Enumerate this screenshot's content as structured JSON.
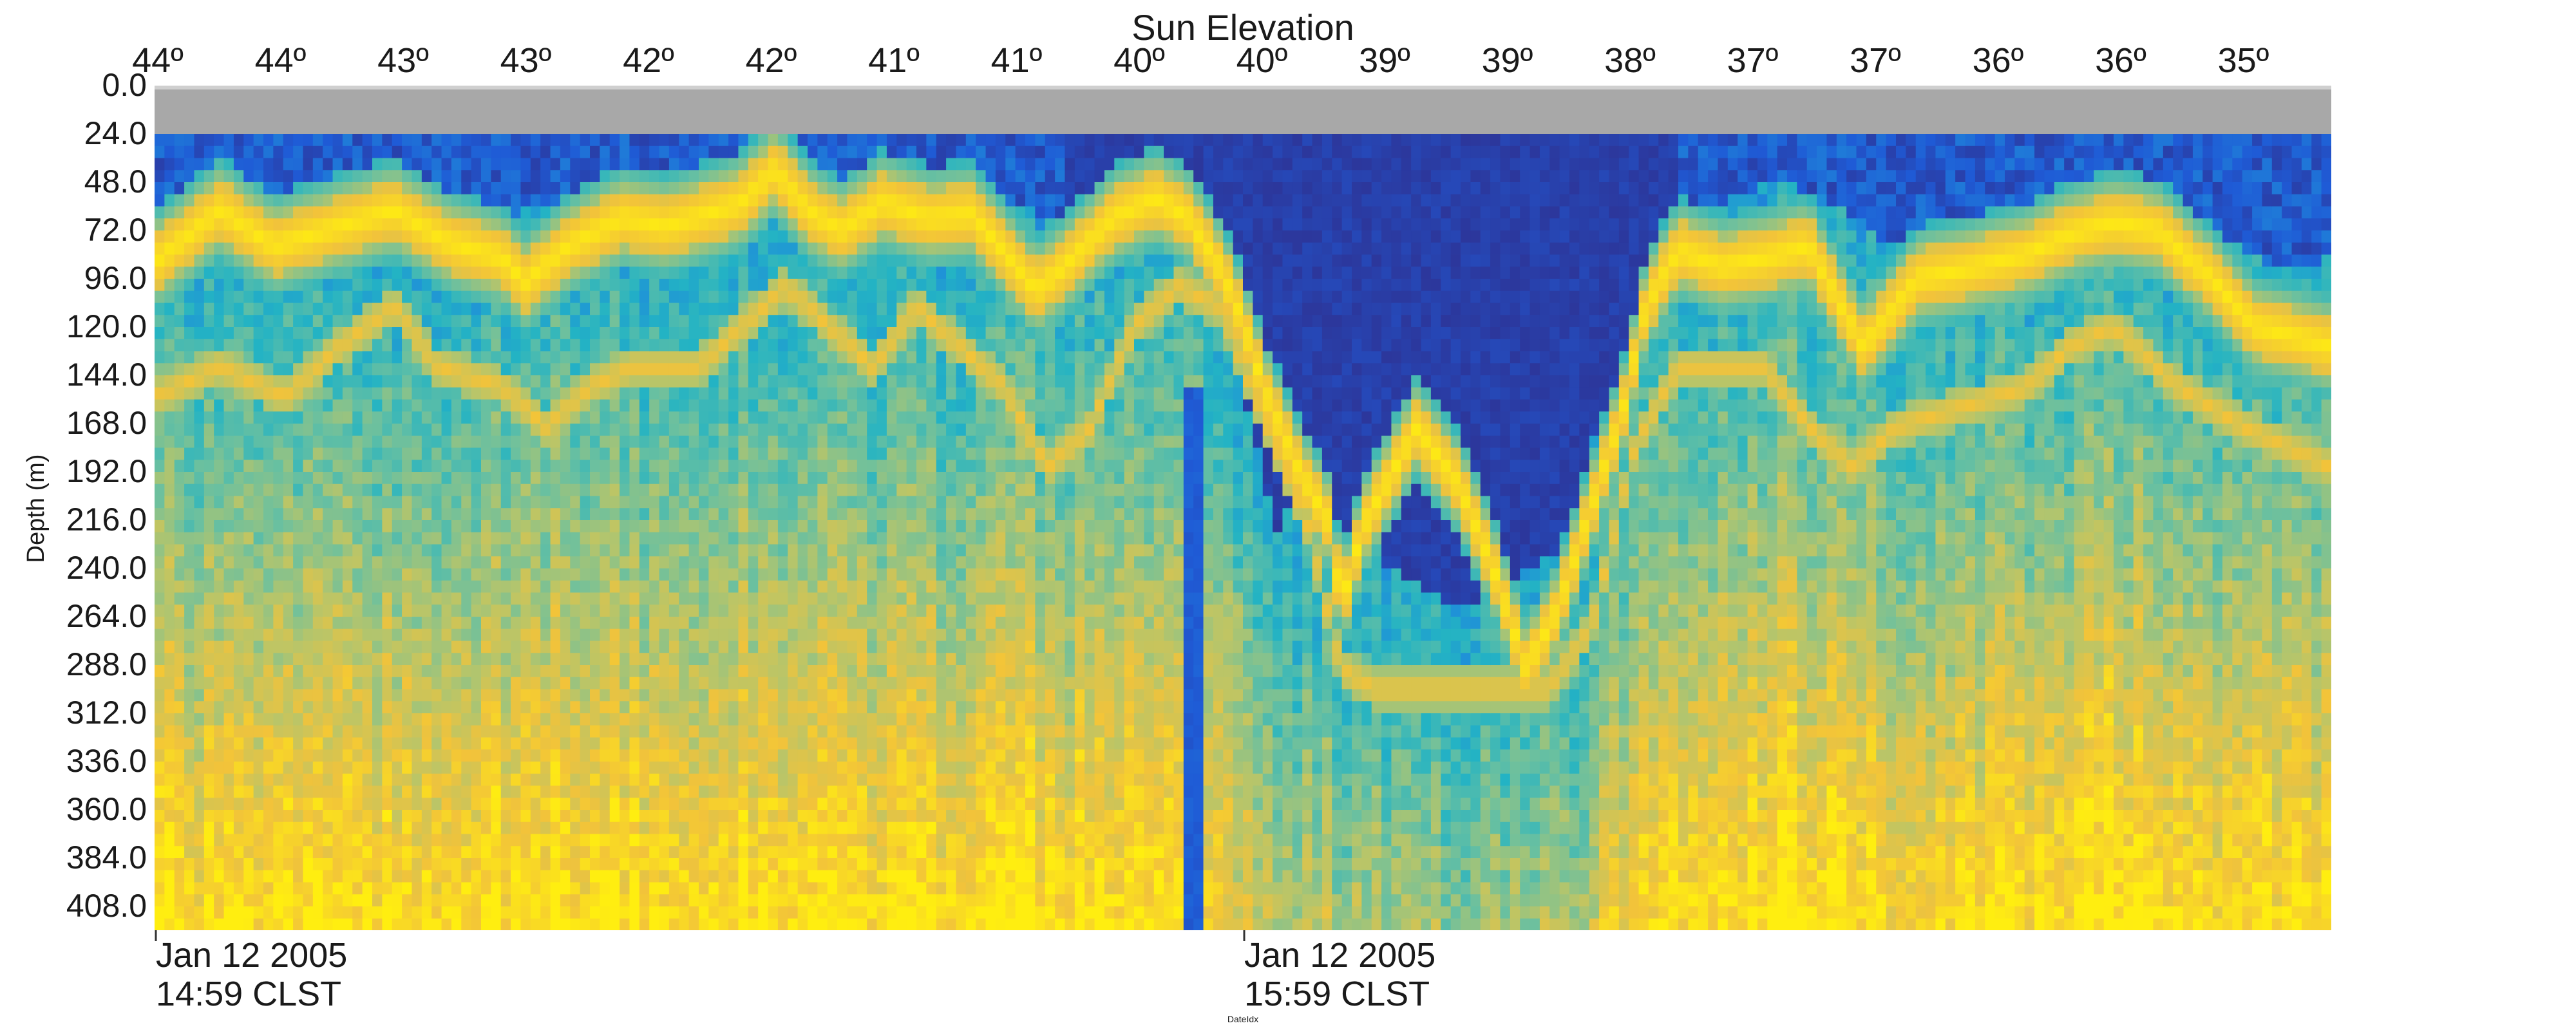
{
  "chart_data": {
    "type": "heatmap",
    "title": "Sun Elevation",
    "ylabel": "Depth (m)",
    "xlabel": "DateIdx",
    "top_axis": {
      "label": "Sun Elevation",
      "ticks": [
        "44º",
        "44º",
        "43º",
        "43º",
        "42º",
        "42º",
        "41º",
        "41º",
        "40º",
        "40º",
        "39º",
        "39º",
        "38º",
        "37º",
        "37º",
        "36º",
        "36º",
        "35º"
      ]
    },
    "y_axis": {
      "label": "Depth (m)",
      "ticks": [
        "0.0",
        "24.0",
        "48.0",
        "72.0",
        "96.0",
        "120.0",
        "144.0",
        "168.0",
        "192.0",
        "216.0",
        "240.0",
        "264.0",
        "288.0",
        "312.0",
        "336.0",
        "360.0",
        "384.0",
        "408.0"
      ],
      "range": [
        0,
        420
      ],
      "inverted": true
    },
    "x_axis": {
      "label": "DateIdx",
      "ticks": [
        {
          "line1": "Jan 12 2005",
          "line2": "14:59 CLST"
        },
        {
          "line1": "Jan 12 2005",
          "line2": "15:59 CLST"
        }
      ]
    },
    "no_data_band": {
      "depth_from": 0,
      "depth_to": 24,
      "color": "#a8a8a8"
    },
    "colormap": [
      "#2e3192",
      "#1f5bd6",
      "#1f8fd9",
      "#23b3c4",
      "#6ac0a0",
      "#b7c56a",
      "#f2c33a",
      "#ffee10"
    ],
    "grid": false,
    "legend": "none"
  }
}
